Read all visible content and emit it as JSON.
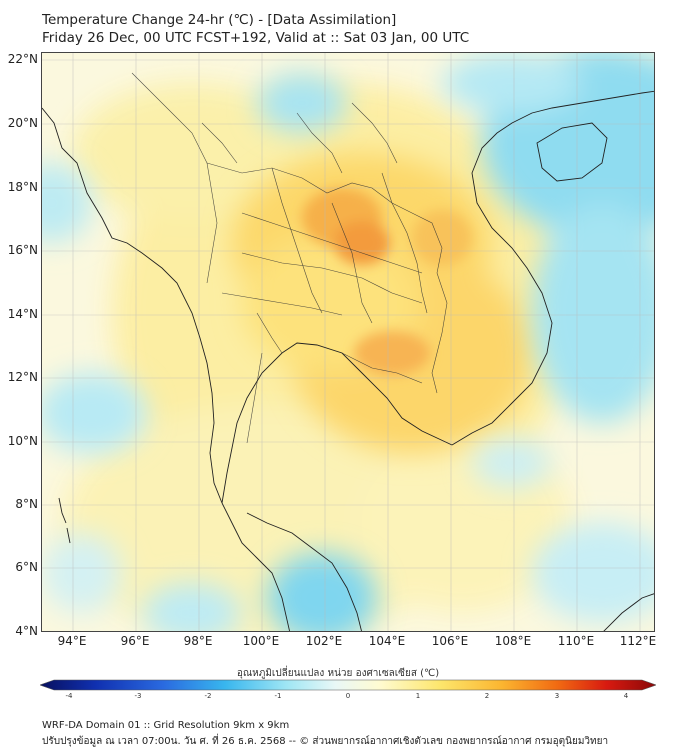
{
  "header": {
    "title": "Temperature Change 24-hr (℃) - [Data Assimilation]",
    "subtitle": "Friday 26 Dec, 00 UTC FCST+192, Valid at :: Sat 03 Jan, 00 UTC"
  },
  "axes": {
    "lat_labels": [
      "22°N",
      "20°N",
      "18°N",
      "16°N",
      "14°N",
      "12°N",
      "10°N",
      "8°N",
      "6°N",
      "4°N"
    ],
    "lon_labels": [
      "94°E",
      "96°E",
      "98°E",
      "100°E",
      "102°E",
      "104°E",
      "106°E",
      "108°E",
      "110°E",
      "112°E"
    ]
  },
  "colorbar": {
    "title": "อุณหภูมิเปลี่ยนแปลง หน่วย องศาเซลเซียส (℃)",
    "tick_labels": [
      "-4",
      "-3",
      "-2",
      "-1",
      "0",
      "1",
      "2",
      "3",
      "4"
    ],
    "min": -4,
    "max": 4,
    "colors": [
      "#08105e",
      "#1030b0",
      "#2a6ae0",
      "#38b6ee",
      "#9fe6f4",
      "#e9f8f6",
      "#fffbd2",
      "#fde66c",
      "#fbb530",
      "#f16a12",
      "#d81a10",
      "#8a0808"
    ]
  },
  "footer": {
    "line1": "WRF-DA Domain 01 :: Grid Resolution 9km x 9km",
    "line2": "ปรับปรุงข้อมูล ณ เวลา 07:00น. วัน ศ. ที่ 26 ธ.ค. 2568 -- © ส่วนพยากรณ์อากาศเชิงตัวเลข กองพยากรณ์อากาศ กรมอุตุนิยมวิทยา"
  },
  "map": {
    "type": "filled-contour",
    "variable": "24-hr temperature change",
    "lon_range": [
      93,
      112.5
    ],
    "lat_range": [
      4,
      22.2
    ],
    "warm_centers": [
      "north-east Thailand / Laos (~102.5°E, 16.5°N)",
      "Cambodia (~103.5°E, 12.8°N)"
    ],
    "cool_areas": [
      "South China Sea near Hainan",
      "Gulf of Thailand south (~101°E, 5°N)",
      "Vietnam coast"
    ]
  }
}
